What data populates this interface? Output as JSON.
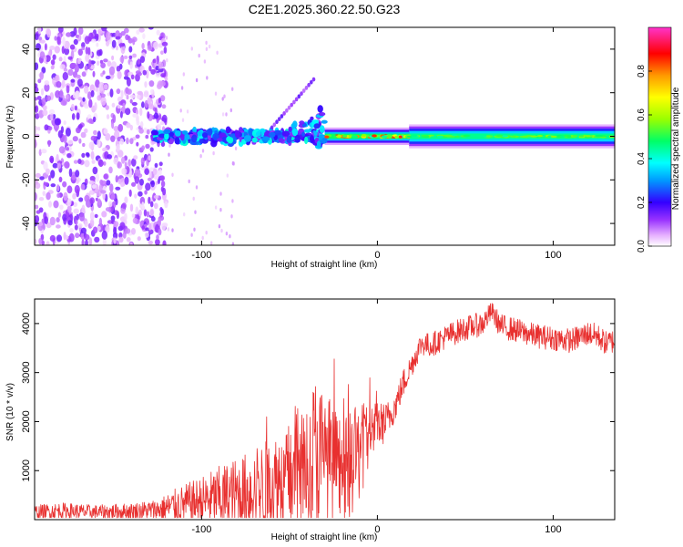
{
  "title": "C2E1.2025.360.22.50.G23",
  "chart_data": [
    {
      "type": "heatmap",
      "title": "C2E1.2025.360.22.50.G23",
      "xlabel": "Height of straight line (km)",
      "ylabel": "Frequency (Hz)",
      "xlim": [
        -195,
        135
      ],
      "ylim": [
        -50,
        50
      ],
      "x_ticks": [
        -100,
        0,
        100
      ],
      "x_tick_labels": [
        "-100",
        "0",
        "100"
      ],
      "y_ticks": [
        -40,
        -20,
        0,
        20,
        40
      ],
      "y_tick_labels": [
        "-40",
        "-20",
        "0",
        "20",
        "40"
      ],
      "colorbar": {
        "label": "Normalized spectral amplitude",
        "range": [
          0,
          1
        ],
        "ticks": [
          0,
          0.2,
          0.4,
          0.6,
          0.8
        ],
        "tick_labels": [
          "0.0",
          "0.2",
          "0.4",
          "0.6",
          "0.8"
        ],
        "colors": [
          "#ffffff",
          "#e6b0ff",
          "#9933ff",
          "#3300ff",
          "#0099ff",
          "#00ffff",
          "#00ff66",
          "#99ff00",
          "#ffff00",
          "#ff9900",
          "#ff0000",
          "#ff33cc"
        ]
      },
      "regions": [
        {
          "x_from": -195,
          "x_to": -120,
          "content": "scattered noise, amplitude 0.05-0.25, all frequencies"
        },
        {
          "x_from": -128,
          "x_to": -30,
          "content": "signal near 0 Hz, amplitude 0.3-0.5, rising drift to +25 Hz near -40 km"
        },
        {
          "x_from": -30,
          "x_to": 18,
          "content": "narrow band at 0 Hz, amplitude 0.5-0.9 with peaks"
        },
        {
          "x_from": 18,
          "x_to": 135,
          "content": "steady band at 0 Hz, amplitude 0.4-0.6, width about ±4 Hz"
        }
      ]
    },
    {
      "type": "line",
      "xlabel": "Height of straight line (km)",
      "ylabel": "SNR (10 * v/v)",
      "xlim": [
        -195,
        135
      ],
      "ylim": [
        0,
        4500
      ],
      "x_ticks": [
        -100,
        0,
        100
      ],
      "x_tick_labels": [
        "-100",
        "0",
        "100"
      ],
      "y_ticks": [
        1000,
        2000,
        3000,
        4000
      ],
      "y_tick_labels": [
        "1000",
        "2000",
        "3000",
        "4000"
      ],
      "color": "#e8302f",
      "series": [
        {
          "name": "SNR",
          "x": [
            -195,
            -180,
            -160,
            -140,
            -125,
            -115,
            -100,
            -90,
            -80,
            -70,
            -60,
            -50,
            -40,
            -35,
            -30,
            -25,
            -20,
            -15,
            -10,
            -5,
            0,
            5,
            10,
            15,
            20,
            25,
            30,
            40,
            50,
            60,
            65,
            70,
            80,
            90,
            100,
            110,
            120,
            125,
            130,
            135
          ],
          "y": [
            150,
            180,
            150,
            170,
            200,
            280,
            380,
            450,
            520,
            600,
            720,
            900,
            1100,
            1300,
            1250,
            1150,
            900,
            1100,
            1400,
            1700,
            1900,
            2000,
            2300,
            2800,
            3200,
            3600,
            3550,
            3750,
            3900,
            4000,
            4250,
            3950,
            3850,
            3750,
            3700,
            3650,
            3800,
            3750,
            3600,
            3650
          ],
          "band": [
            150,
            170,
            150,
            170,
            220,
            350,
            500,
            650,
            750,
            850,
            1000,
            1100,
            1500,
            1700,
            1400,
            1300,
            1100,
            1100,
            1000,
            800,
            500,
            400,
            300,
            300,
            250,
            250,
            250,
            250,
            250,
            250,
            200,
            250,
            250,
            250,
            250,
            250,
            250,
            250,
            250,
            250
          ]
        }
      ]
    }
  ]
}
